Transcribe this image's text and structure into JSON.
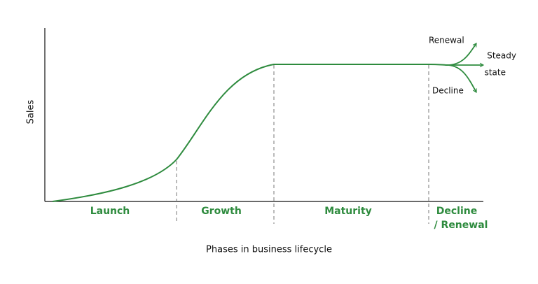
{
  "axes": {
    "y_label": "Sales",
    "x_label": "Phases in business lifecycle"
  },
  "phases": [
    {
      "lines": [
        "Launch"
      ]
    },
    {
      "lines": [
        "Growth"
      ]
    },
    {
      "lines": [
        "Maturity"
      ]
    },
    {
      "lines": [
        "Decline",
        "/ Renewal"
      ]
    }
  ],
  "branches": [
    {
      "lines": [
        "Renewal"
      ]
    },
    {
      "lines": [
        "Steady",
        "state"
      ]
    },
    {
      "lines": [
        "Decline"
      ]
    }
  ]
}
